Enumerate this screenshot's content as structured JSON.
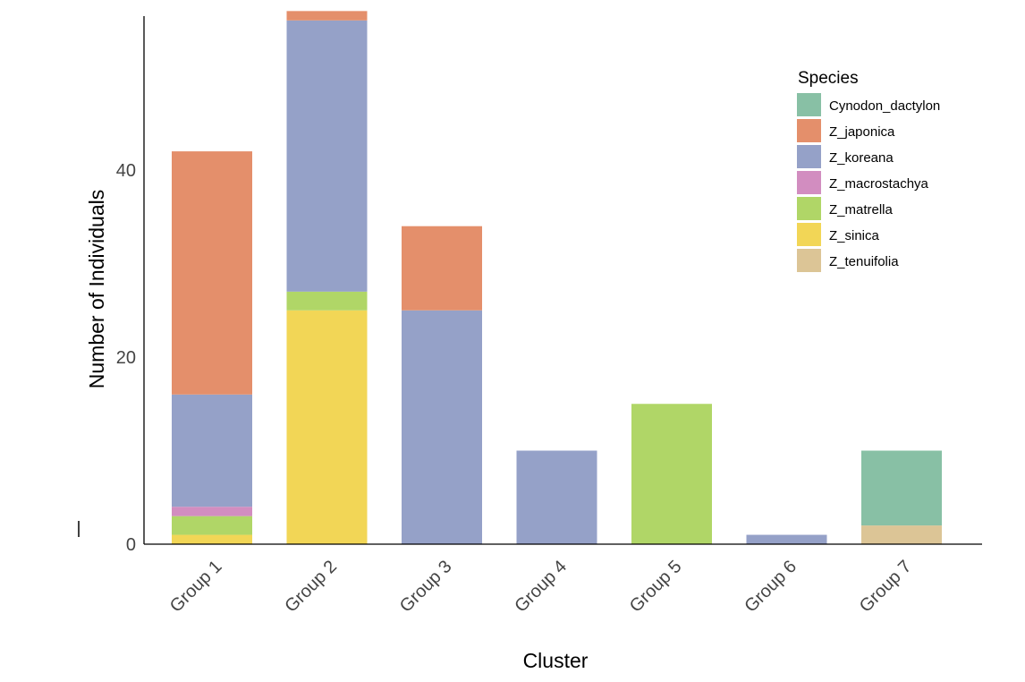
{
  "chart_data": {
    "type": "bar",
    "stacked": true,
    "title": "",
    "xlabel": "Cluster",
    "ylabel": "Number of Individuals",
    "ylim": [
      0,
      58
    ],
    "yticks": [
      0,
      20,
      40
    ],
    "grid": false,
    "legend_title": "Species",
    "legend_position": "top-right",
    "categories": [
      "Group 1",
      "Group 2",
      "Group 3",
      "Group 4",
      "Group 5",
      "Group 6",
      "Group 7"
    ],
    "series": [
      {
        "name": "Cynodon_dactylon",
        "color": "#88c0a5",
        "values": [
          0,
          0,
          0,
          0,
          0,
          0,
          8
        ]
      },
      {
        "name": "Z_japonica",
        "color": "#e48f6b",
        "values": [
          26,
          1,
          9,
          0,
          0,
          0,
          0
        ]
      },
      {
        "name": "Z_koreana",
        "color": "#95a1c8",
        "values": [
          12,
          29,
          25,
          10,
          0,
          1,
          0
        ]
      },
      {
        "name": "Z_macrostachya",
        "color": "#d28dc0",
        "values": [
          1,
          0,
          0,
          0,
          0,
          0,
          0
        ]
      },
      {
        "name": "Z_matrella",
        "color": "#b0d667",
        "values": [
          2,
          2,
          0,
          0,
          15,
          0,
          0
        ]
      },
      {
        "name": "Z_sinica",
        "color": "#f2d656",
        "values": [
          1,
          25,
          0,
          0,
          0,
          0,
          0
        ]
      },
      {
        "name": "Z_tenuifolia",
        "color": "#dcc596",
        "values": [
          0,
          0,
          0,
          0,
          0,
          0,
          2
        ]
      }
    ]
  }
}
